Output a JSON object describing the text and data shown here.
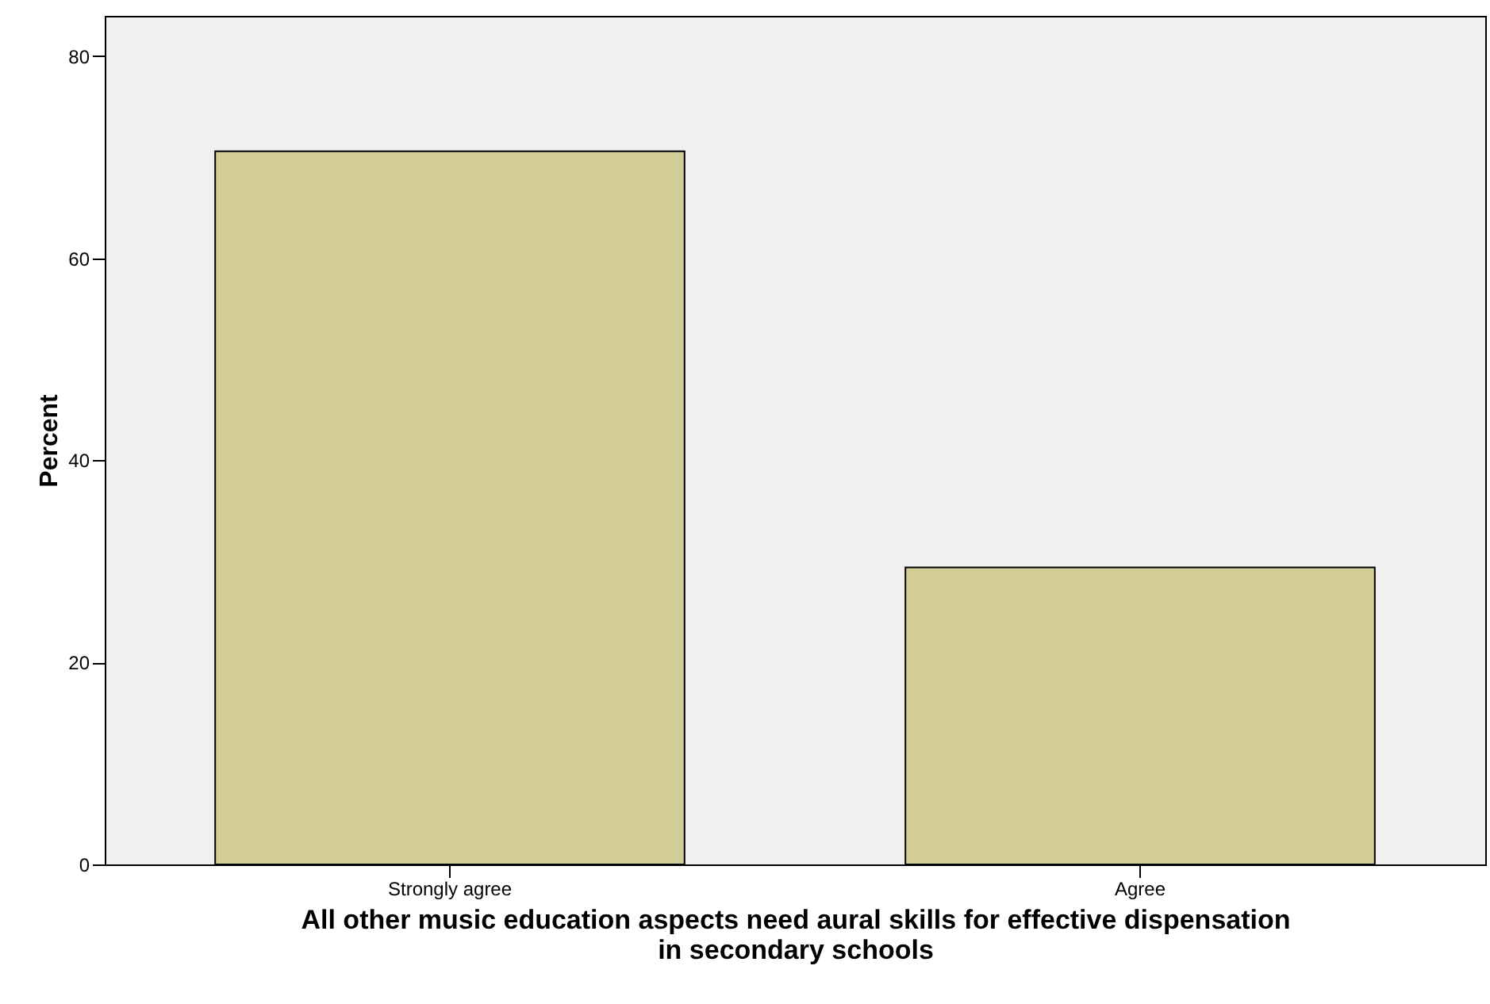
{
  "chart_data": {
    "type": "bar",
    "xlabel": "All other music education aspects need aural skills for effective dispensation in secondary schools",
    "ylabel": "Percent",
    "categories": [
      "Strongly agree",
      "Agree"
    ],
    "values": [
      70.6,
      29.4
    ],
    "color": "#d3ce97",
    "ylim": [
      0,
      84
    ],
    "yticks": [
      0,
      20,
      40,
      60,
      80
    ],
    "grid": false
  }
}
